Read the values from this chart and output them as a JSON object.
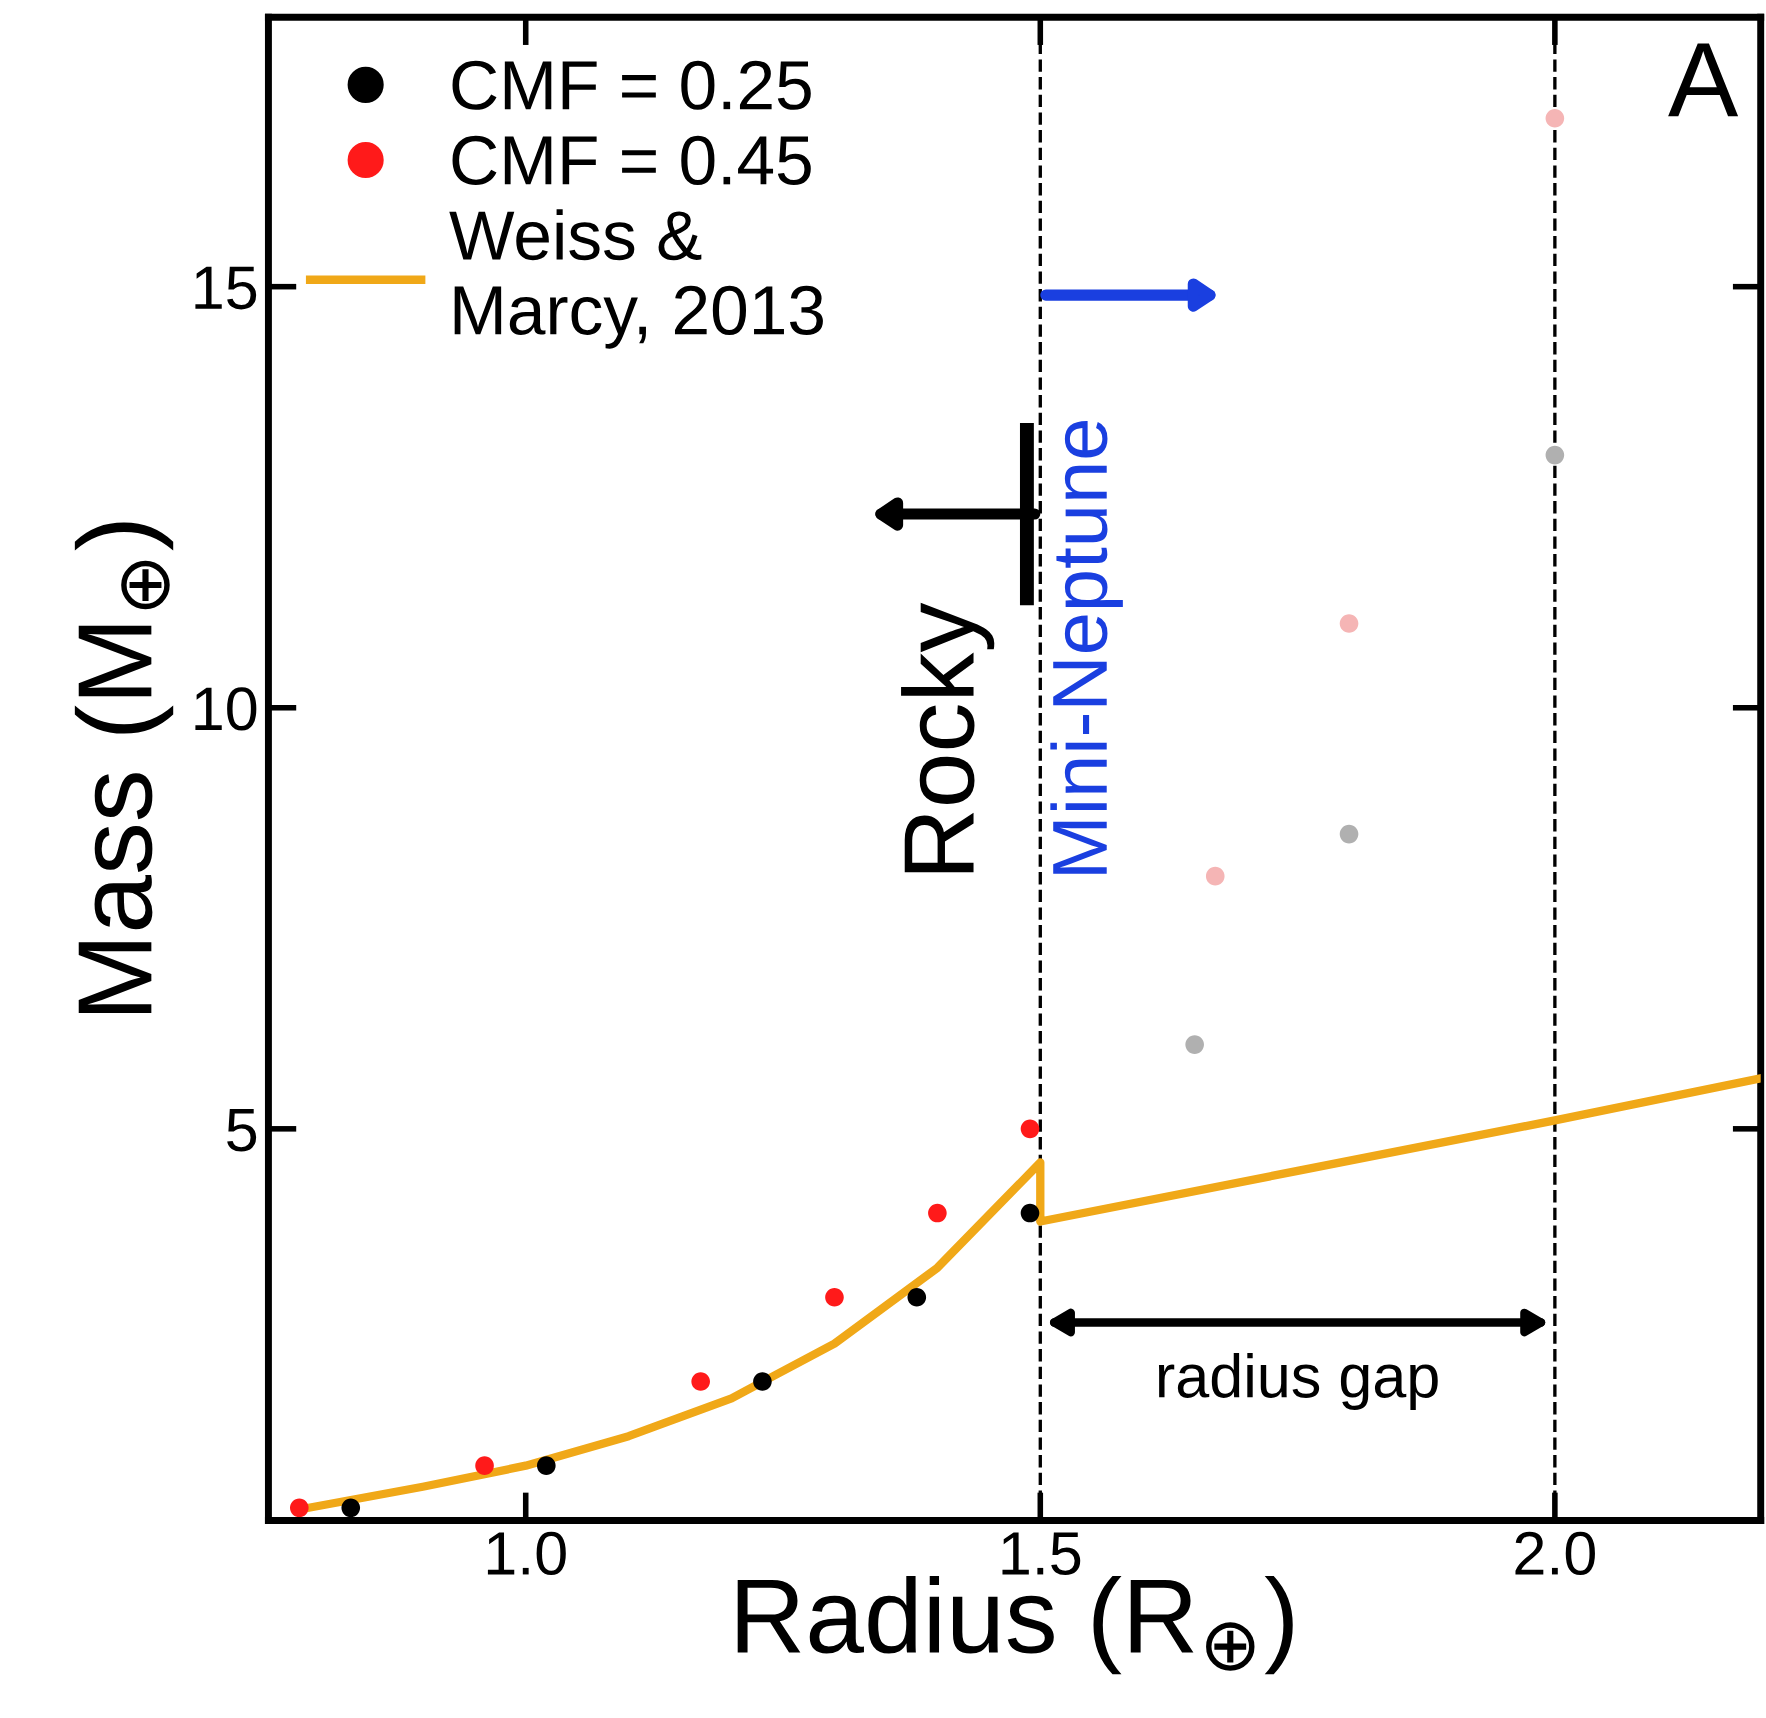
{
  "chart_data": {
    "type": "scatter",
    "xlabel": "Radius (R$_{⊕}$)",
    "ylabel": "Mass (M$_{⊕}$)",
    "xlim": [
      0.75,
      2.2
    ],
    "ylim": [
      0.35,
      18.2
    ],
    "xticks": [
      {
        "value": 1.0,
        "label": "1.0"
      },
      {
        "value": 1.5,
        "label": "1.5"
      },
      {
        "value": 2.0,
        "label": "2.0"
      }
    ],
    "yticks": [
      5,
      10,
      15
    ],
    "marker": "circle",
    "legend": "top left",
    "grid": false,
    "series": [
      {
        "name": "CMF = 0.25",
        "color": "#000000",
        "x": [
          0.83,
          1.02,
          1.23,
          1.38,
          1.49
        ],
        "values": [
          0.5,
          1,
          2,
          3,
          4
        ]
      },
      {
        "name": "CMF = 0.45",
        "color": "#ff1a1a",
        "x": [
          0.78,
          0.96,
          1.17,
          1.3,
          1.4,
          1.49
        ],
        "values": [
          0.5,
          1,
          2,
          3,
          4,
          5
        ]
      },
      {
        "color": "#b0b0b0",
        "x": [
          1.65,
          1.8,
          2.0
        ],
        "values": [
          6,
          8.5,
          13
        ]
      },
      {
        "color": "#f5b5b5",
        "x": [
          1.67,
          1.8,
          2.0
        ],
        "values": [
          8,
          11,
          17
        ]
      },
      {
        "name": "Weiss &\nMarcy, 2013",
        "type": "line",
        "marker": "none",
        "color": "#f0a818",
        "x": [
          0.78,
          0.9,
          1.0,
          1.1,
          1.2,
          1.3,
          1.4,
          1.5,
          1.5,
          1.75,
          2.0,
          2.2
        ],
        "values": [
          0.48,
          0.75,
          1.0,
          1.35,
          1.8,
          2.45,
          3.35,
          4.6,
          3.9,
          4.5,
          5.1,
          5.6
        ]
      }
    ],
    "ref_lines": [
      {
        "axis": "x",
        "value": 1.5,
        "line_style": "dashed",
        "color": "#000000"
      },
      {
        "axis": "x",
        "value": 2.0,
        "line_style": "dashed",
        "color": "#000000"
      }
    ],
    "annotations": [
      "A",
      "Rocky",
      "Mini-Neptune",
      "radius gap"
    ]
  }
}
